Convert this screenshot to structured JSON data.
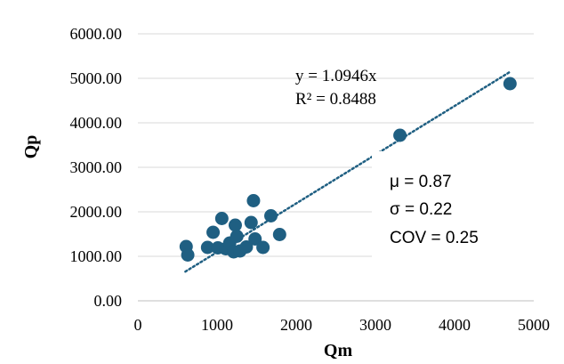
{
  "chart_data": {
    "type": "scatter",
    "xlabel": "Qm",
    "ylabel": "Qp",
    "xlim": [
      0,
      5000
    ],
    "ylim": [
      0,
      6000
    ],
    "x_ticks": [
      "0",
      "1000",
      "2000",
      "3000",
      "4000",
      "5000"
    ],
    "y_ticks": [
      "0.00",
      "1000.00",
      "2000.00",
      "3000.00",
      "4000.00",
      "5000.00",
      "6000.00"
    ],
    "x_tick_values": [
      0,
      1000,
      2000,
      3000,
      4000,
      5000
    ],
    "y_tick_values": [
      0,
      1000,
      2000,
      3000,
      4000,
      5000,
      6000
    ],
    "grid": "horizontal",
    "series": [
      {
        "marker_color": "#1f5f82",
        "points": [
          [
            610,
            1220
          ],
          [
            630,
            1030
          ],
          [
            880,
            1200
          ],
          [
            950,
            1540
          ],
          [
            1010,
            1190
          ],
          [
            1060,
            1850
          ],
          [
            1110,
            1170
          ],
          [
            1160,
            1300
          ],
          [
            1210,
            1100
          ],
          [
            1230,
            1700
          ],
          [
            1250,
            1450
          ],
          [
            1290,
            1120
          ],
          [
            1370,
            1210
          ],
          [
            1430,
            1760
          ],
          [
            1460,
            2250
          ],
          [
            1480,
            1390
          ],
          [
            1580,
            1200
          ],
          [
            1680,
            1910
          ],
          [
            1790,
            1490
          ],
          [
            3310,
            3720
          ],
          [
            4700,
            4880
          ]
        ]
      }
    ],
    "trendline": {
      "slope": 1.0946,
      "x_range": [
        600,
        4700
      ],
      "color": "#1f5f82",
      "style": "dotted",
      "equation": "y = 1.0946x",
      "r_squared": "R² = 0.8488"
    },
    "annotations": {
      "mu": "μ = 0.87",
      "sigma": "σ = 0.22",
      "cov": "COV = 0.25"
    }
  }
}
